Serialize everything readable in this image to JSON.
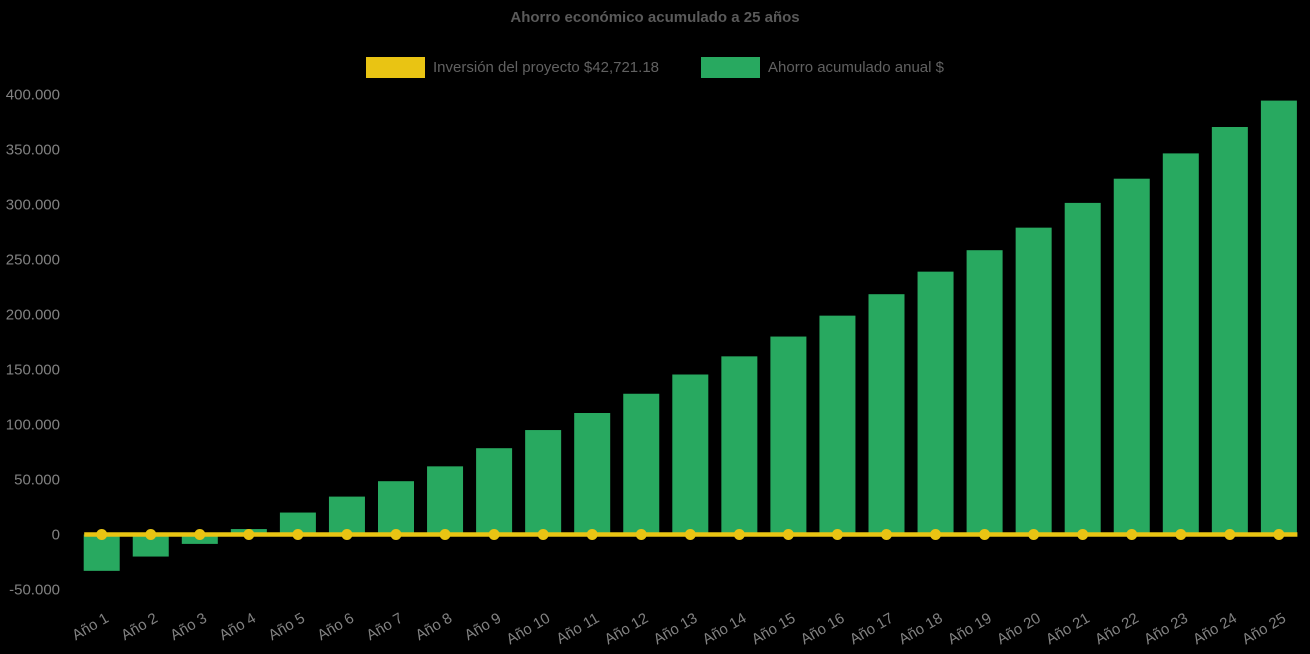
{
  "colors": {
    "background": "#000000",
    "title": "#5a5a5a",
    "legend_text": "#616161",
    "tick_text": "#828282"
  },
  "chart_data": {
    "type": "bar",
    "title": "Ahorro económico acumulado a 25 años",
    "xlabel": "",
    "ylabel": "",
    "grid": false,
    "legend_position": "top",
    "x_tick_rotation": -30,
    "ylim": [
      -50000,
      400000
    ],
    "y_tick_step": 50000,
    "y_tick_labels": [
      "400.000",
      "350.000",
      "300.000",
      "250.000",
      "200.000",
      "150.000",
      "100.000",
      "50.000",
      "0",
      "-50.000"
    ],
    "categories": [
      "Año 1",
      "Año 2",
      "Año 3",
      "Año 4",
      "Año 5",
      "Año 6",
      "Año 7",
      "Año 8",
      "Año 9",
      "Año 10",
      "Año 11",
      "Año 12",
      "Año 13",
      "Año 14",
      "Año 15",
      "Año 16",
      "Año 17",
      "Año 18",
      "Año 19",
      "Año 20",
      "Año 21",
      "Año 22",
      "Año 23",
      "Año 24",
      "Año 25"
    ],
    "series": [
      {
        "name": "Inversión del proyecto $42,721.18",
        "type": "line",
        "color": "#e9c413",
        "values": [
          0,
          0,
          0,
          0,
          0,
          0,
          0,
          0,
          0,
          0,
          0,
          0,
          0,
          0,
          0,
          0,
          0,
          0,
          0,
          0,
          0,
          0,
          0,
          0,
          0
        ]
      },
      {
        "name": "Ahorro acumulado anual $",
        "type": "bar",
        "color": "#28a960",
        "values": [
          -33500,
          -20500,
          -9000,
          4500,
          19500,
          34000,
          48000,
          61500,
          78000,
          94500,
          110000,
          127500,
          145000,
          161500,
          179500,
          198500,
          218000,
          238500,
          258000,
          278500,
          301000,
          323000,
          346000,
          370000,
          394000
        ]
      }
    ]
  }
}
